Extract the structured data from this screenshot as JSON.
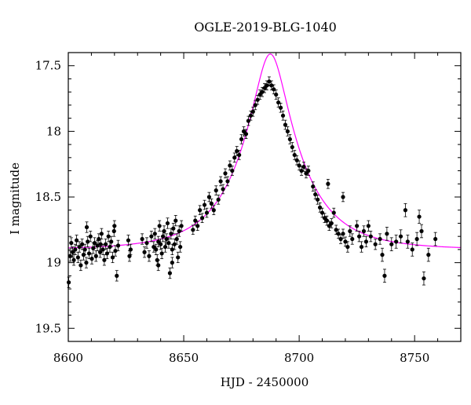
{
  "chart_data": {
    "type": "scatter",
    "title": "OGLE-2019-BLG-1040",
    "xlabel": "HJD - 2450000",
    "ylabel": "I magnitude",
    "xlim": [
      8600,
      8770
    ],
    "ylim": [
      19.6,
      17.4
    ],
    "y_inverted": true,
    "grid": false,
    "x_ticks": [
      8600,
      8650,
      8700,
      8750
    ],
    "y_ticks": [
      17.5,
      18,
      18.5,
      19,
      19.5
    ],
    "x_tick_labels": [
      "8600",
      "8650",
      "8700",
      "8750"
    ],
    "y_tick_labels": [
      "17.5",
      "18",
      "18.5",
      "19",
      "19.5"
    ],
    "model": {
      "t0": 8687.5,
      "u0": 0.26,
      "tE": 26,
      "baseline_mag": 18.9,
      "color": "#ff00ff"
    },
    "series": [
      {
        "marker_color": "#000000",
        "points": [
          [
            8600.2,
            19.15,
            0.04
          ],
          [
            8600.8,
            18.95,
            0.04
          ],
          [
            8601.3,
            18.85,
            0.04
          ],
          [
            8601.9,
            18.92,
            0.04
          ],
          [
            8602.4,
            18.98,
            0.04
          ],
          [
            8603.0,
            18.9,
            0.04
          ],
          [
            8603.6,
            18.83,
            0.04
          ],
          [
            8604.2,
            18.96,
            0.04
          ],
          [
            8604.8,
            18.88,
            0.04
          ],
          [
            8605.4,
            19.02,
            0.04
          ],
          [
            8606.0,
            18.86,
            0.04
          ],
          [
            8606.6,
            18.94,
            0.04
          ],
          [
            8607.2,
            18.9,
            0.04
          ],
          [
            8607.8,
            19.0,
            0.04
          ],
          [
            8608.4,
            18.84,
            0.04
          ],
          [
            8609.0,
            18.93,
            0.04
          ],
          [
            8609.6,
            18.8,
            0.04
          ],
          [
            8610.2,
            18.97,
            0.04
          ],
          [
            8610.8,
            18.89,
            0.04
          ],
          [
            8611.4,
            18.85,
            0.04
          ],
          [
            8612.0,
            18.95,
            0.04
          ],
          [
            8612.6,
            18.87,
            0.04
          ],
          [
            8613.2,
            18.82,
            0.04
          ],
          [
            8613.8,
            18.92,
            0.04
          ],
          [
            8614.4,
            18.78,
            0.04
          ],
          [
            8615.0,
            18.9,
            0.04
          ],
          [
            8615.6,
            18.98,
            0.04
          ],
          [
            8616.2,
            18.86,
            0.04
          ],
          [
            8616.8,
            18.93,
            0.04
          ],
          [
            8617.4,
            18.8,
            0.04
          ],
          [
            8618.0,
            18.88,
            0.04
          ],
          [
            8618.6,
            18.84,
            0.04
          ],
          [
            8619.2,
            18.96,
            0.04
          ],
          [
            8619.8,
            18.76,
            0.04
          ],
          [
            8620.4,
            18.91,
            0.04
          ],
          [
            8621.0,
            19.1,
            0.04
          ],
          [
            8621.6,
            18.87,
            0.04
          ],
          [
            8608.0,
            18.73,
            0.04
          ],
          [
            8614.0,
            18.86,
            0.04
          ],
          [
            8620.0,
            18.72,
            0.04
          ],
          [
            8626.0,
            18.83,
            0.04
          ],
          [
            8626.5,
            18.95,
            0.04
          ],
          [
            8627.0,
            18.9,
            0.04
          ],
          [
            8632.0,
            18.82,
            0.04
          ],
          [
            8633.0,
            18.92,
            0.04
          ],
          [
            8634.0,
            18.85,
            0.04
          ],
          [
            8635.0,
            18.95,
            0.04
          ],
          [
            8636.0,
            18.8,
            0.04
          ],
          [
            8637.0,
            18.88,
            0.04
          ],
          [
            8637.5,
            18.78,
            0.04
          ],
          [
            8638.0,
            18.9,
            0.04
          ],
          [
            8638.5,
            18.98,
            0.04
          ],
          [
            8639.0,
            18.84,
            0.04
          ],
          [
            8639.5,
            18.72,
            0.04
          ],
          [
            8640.0,
            18.86,
            0.04
          ],
          [
            8640.5,
            18.93,
            0.04
          ],
          [
            8641.0,
            18.8,
            0.04
          ],
          [
            8641.5,
            18.76,
            0.04
          ],
          [
            8642.0,
            18.88,
            0.04
          ],
          [
            8642.5,
            18.82,
            0.04
          ],
          [
            8643.0,
            18.7,
            0.04
          ],
          [
            8643.5,
            18.85,
            0.04
          ],
          [
            8644.0,
            19.08,
            0.04
          ],
          [
            8644.5,
            18.78,
            0.04
          ],
          [
            8645.0,
            18.9,
            0.04
          ],
          [
            8645.5,
            18.74,
            0.04
          ],
          [
            8646.0,
            18.86,
            0.04
          ],
          [
            8646.5,
            18.68,
            0.04
          ],
          [
            8647.0,
            18.82,
            0.04
          ],
          [
            8647.5,
            18.96,
            0.04
          ],
          [
            8648.0,
            18.76,
            0.04
          ],
          [
            8648.5,
            18.88,
            0.04
          ],
          [
            8649.0,
            18.72,
            0.04
          ],
          [
            8639.0,
            19.02,
            0.04
          ],
          [
            8645.0,
            19.0,
            0.04
          ],
          [
            8654.0,
            18.75,
            0.035
          ],
          [
            8655.0,
            18.68,
            0.035
          ],
          [
            8656.0,
            18.72,
            0.035
          ],
          [
            8657.0,
            18.6,
            0.035
          ],
          [
            8658.0,
            18.66,
            0.035
          ],
          [
            8659.0,
            18.56,
            0.035
          ],
          [
            8660.0,
            18.62,
            0.035
          ],
          [
            8661.0,
            18.5,
            0.035
          ],
          [
            8662.0,
            18.55,
            0.035
          ],
          [
            8663.0,
            18.6,
            0.035
          ],
          [
            8664.0,
            18.45,
            0.035
          ],
          [
            8665.0,
            18.52,
            0.035
          ],
          [
            8666.0,
            18.38,
            0.035
          ],
          [
            8667.0,
            18.44,
            0.035
          ],
          [
            8668.0,
            18.32,
            0.035
          ],
          [
            8669.0,
            18.38,
            0.035
          ],
          [
            8670.0,
            18.26,
            0.035
          ],
          [
            8671.0,
            18.3,
            0.035
          ],
          [
            8672.0,
            18.2,
            0.035
          ],
          [
            8673.0,
            18.15,
            0.035
          ],
          [
            8674.0,
            18.18,
            0.035
          ],
          [
            8675.0,
            18.06,
            0.035
          ],
          [
            8676.0,
            18.0,
            0.035
          ],
          [
            8677.0,
            18.02,
            0.035
          ],
          [
            8678.0,
            17.92,
            0.035
          ],
          [
            8679.0,
            17.88,
            0.035
          ],
          [
            8680.0,
            17.85,
            0.035
          ],
          [
            8681.0,
            17.8,
            0.035
          ],
          [
            8682.0,
            17.76,
            0.035
          ],
          [
            8683.0,
            17.72,
            0.035
          ],
          [
            8684.0,
            17.7,
            0.035
          ],
          [
            8685.0,
            17.67,
            0.035
          ],
          [
            8686.0,
            17.65,
            0.035
          ],
          [
            8687.0,
            17.62,
            0.035
          ],
          [
            8688.0,
            17.65,
            0.035
          ],
          [
            8689.0,
            17.68,
            0.035
          ],
          [
            8690.0,
            17.72,
            0.035
          ],
          [
            8691.0,
            17.78,
            0.035
          ],
          [
            8692.0,
            17.82,
            0.035
          ],
          [
            8693.0,
            17.88,
            0.035
          ],
          [
            8694.0,
            17.95,
            0.035
          ],
          [
            8695.0,
            18.0,
            0.035
          ],
          [
            8696.0,
            18.06,
            0.035
          ],
          [
            8697.0,
            18.12,
            0.035
          ],
          [
            8698.0,
            18.18,
            0.035
          ],
          [
            8699.0,
            18.22,
            0.035
          ],
          [
            8700.0,
            18.26,
            0.035
          ],
          [
            8701.0,
            18.3,
            0.035
          ],
          [
            8702.0,
            18.27,
            0.035
          ],
          [
            8703.0,
            18.32,
            0.035
          ],
          [
            8704.0,
            18.3,
            0.035
          ],
          [
            8706.0,
            18.42,
            0.035
          ],
          [
            8707.0,
            18.48,
            0.035
          ],
          [
            8708.0,
            18.52,
            0.035
          ],
          [
            8709.0,
            18.58,
            0.035
          ],
          [
            8710.0,
            18.62,
            0.035
          ],
          [
            8711.0,
            18.66,
            0.035
          ],
          [
            8712.0,
            18.68,
            0.035
          ],
          [
            8713.0,
            18.72,
            0.035
          ],
          [
            8714.0,
            18.7,
            0.035
          ],
          [
            8715.0,
            18.62,
            0.035
          ],
          [
            8716.0,
            18.75,
            0.035
          ],
          [
            8717.0,
            18.78,
            0.035
          ],
          [
            8718.0,
            18.82,
            0.035
          ],
          [
            8719.0,
            18.78,
            0.035
          ],
          [
            8720.0,
            18.84,
            0.035
          ],
          [
            8712.5,
            18.4,
            0.035
          ],
          [
            8719.0,
            18.5,
            0.035
          ],
          [
            8721.0,
            18.88,
            0.04
          ],
          [
            8722.0,
            18.76,
            0.04
          ],
          [
            8723.0,
            18.82,
            0.04
          ],
          [
            8725.0,
            18.72,
            0.04
          ],
          [
            8726.0,
            18.8,
            0.04
          ],
          [
            8727.0,
            18.88,
            0.04
          ],
          [
            8728.0,
            18.76,
            0.04
          ],
          [
            8729.0,
            18.84,
            0.04
          ],
          [
            8730.0,
            18.72,
            0.04
          ],
          [
            8731.0,
            18.8,
            0.04
          ],
          [
            8733.0,
            18.86,
            0.04
          ],
          [
            8735.0,
            18.82,
            0.04
          ],
          [
            8736.0,
            18.94,
            0.05
          ],
          [
            8737.0,
            19.1,
            0.05
          ],
          [
            8738.0,
            18.78,
            0.05
          ],
          [
            8740.0,
            18.86,
            0.05
          ],
          [
            8742.0,
            18.84,
            0.05
          ],
          [
            8744.0,
            18.8,
            0.05
          ],
          [
            8746.0,
            18.6,
            0.05
          ],
          [
            8747.0,
            18.84,
            0.05
          ],
          [
            8749.0,
            18.9,
            0.05
          ],
          [
            8751.0,
            18.82,
            0.05
          ],
          [
            8752.0,
            18.65,
            0.05
          ],
          [
            8753.0,
            18.76,
            0.05
          ],
          [
            8754.0,
            19.12,
            0.05
          ],
          [
            8756.0,
            18.94,
            0.05
          ],
          [
            8759.0,
            18.82,
            0.05
          ]
        ]
      }
    ]
  }
}
